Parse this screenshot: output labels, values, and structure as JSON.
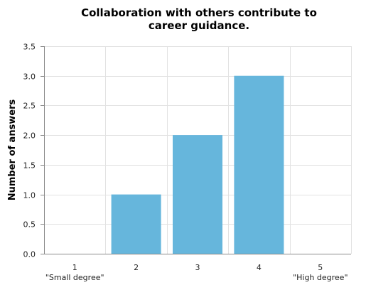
{
  "chart_data": {
    "type": "bar",
    "title_lines": [
      "Collaboration with others contribute to",
      "career guidance."
    ],
    "ylabel": "Number of answers",
    "xlabel": "",
    "categories": [
      "1",
      "2",
      "3",
      "4",
      "5"
    ],
    "category_sublabels": [
      "\"Small degree\"",
      "",
      "",
      "",
      "\"High degree\""
    ],
    "values": [
      0,
      1,
      2,
      3,
      0
    ],
    "ylim": [
      0,
      3.5
    ],
    "yticks": [
      "0.0",
      "0.5",
      "1.0",
      "1.5",
      "2.0",
      "2.5",
      "3.0",
      "3.5"
    ],
    "grid": true,
    "legend": "none",
    "colors": {
      "bar": "#66b6dc",
      "grid": "#e2e2e2",
      "axis": "#8a8a8a"
    }
  }
}
